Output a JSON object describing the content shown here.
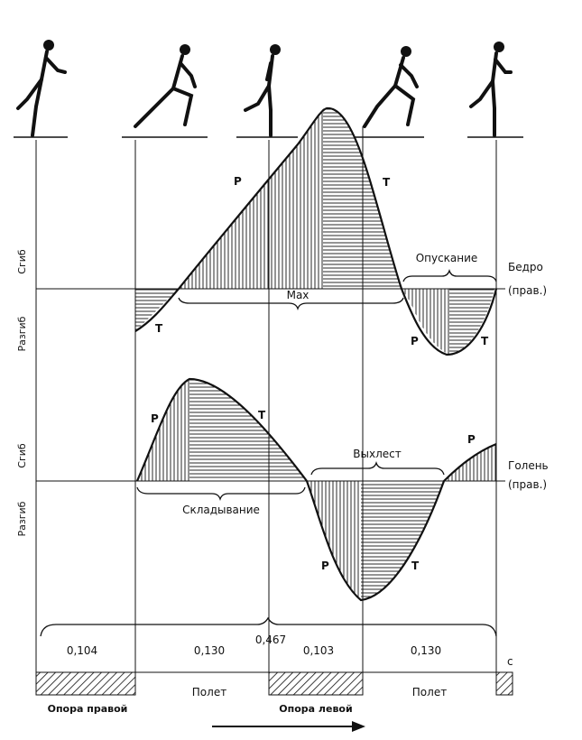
{
  "labels": {
    "thigh": [
      "Бедро",
      "(прав.)"
    ],
    "shin": [
      "Голень",
      "(прав.)"
    ],
    "flex": "Сгиб",
    "ext": "Разгиб",
    "max": "Max",
    "lowering": "Опускание",
    "folding": "Складывание",
    "whip": "Выхлест",
    "P": "Р",
    "T": "Т"
  },
  "phases": {
    "durations": [
      "0,104",
      "0,130",
      "0,103",
      "0,130"
    ],
    "total": "0,467",
    "unit": "с",
    "support_right": "Опора правой",
    "flight": "Полет",
    "support_left": "Опора левой"
  }
}
